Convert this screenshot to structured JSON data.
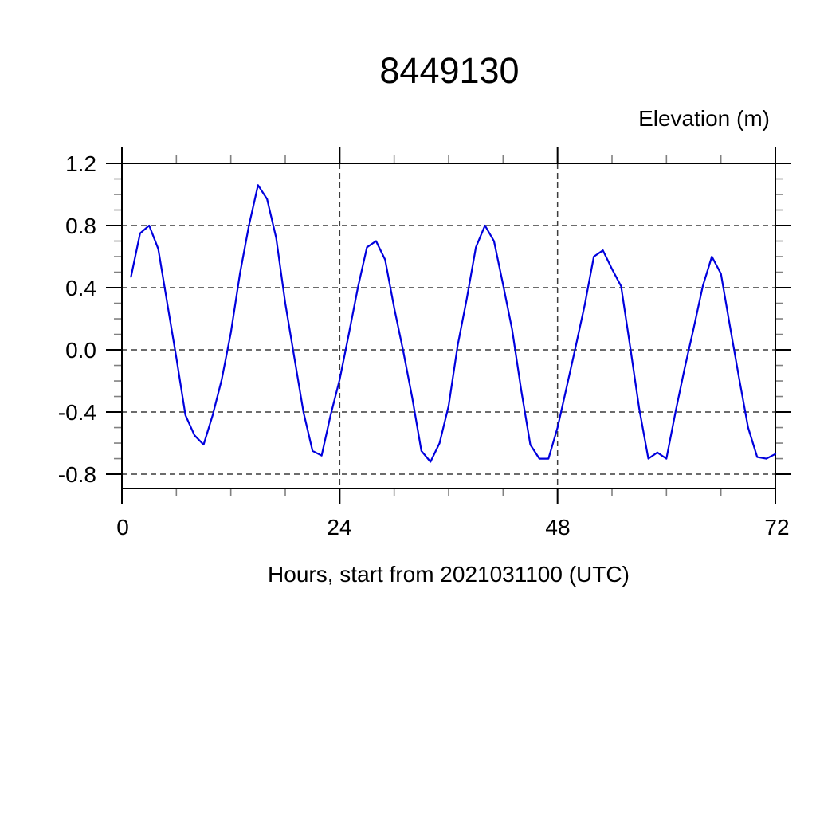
{
  "chart_data": {
    "type": "line",
    "title": "8449130",
    "ylabel": "Elevation (m)",
    "xlabel": "Hours, start from 2021031100 (UTC)",
    "xlim": [
      0,
      72
    ],
    "ylim": [
      -0.892,
      1.2
    ],
    "x_ticks_major": [
      0,
      24,
      48,
      72
    ],
    "x_tick_labels": [
      "0",
      "24",
      "48",
      "72"
    ],
    "x_minor_interval": 6,
    "y_ticks_major": [
      1.2,
      0.8,
      0.4,
      0.0,
      -0.4,
      -0.8
    ],
    "y_tick_labels": [
      "1.2",
      "0.8",
      "0.4",
      "0.0",
      "-0.4",
      "-0.8"
    ],
    "y_minor_interval": 0.1,
    "grid": "dashed, at major ticks; vertical gridlines at x=24,48",
    "legend": "none",
    "series": [
      {
        "name": "elevation",
        "color": "#0000dd",
        "x": [
          1,
          2,
          3,
          4,
          5,
          6,
          7,
          8,
          9,
          10,
          11,
          12,
          13,
          14,
          15,
          16,
          17,
          18,
          19,
          20,
          21,
          22,
          23,
          24,
          25,
          26,
          27,
          28,
          29,
          30,
          31,
          32,
          33,
          34,
          35,
          36,
          37,
          38,
          39,
          40,
          41,
          42,
          43,
          44,
          45,
          46,
          47,
          48,
          49,
          50,
          51,
          52,
          53,
          54,
          55,
          56,
          57,
          58,
          59,
          60,
          61,
          62,
          63,
          64,
          65,
          66,
          67,
          68,
          69,
          70,
          71,
          72
        ],
        "y": [
          0.47,
          0.75,
          0.8,
          0.65,
          0.3,
          -0.05,
          -0.42,
          -0.55,
          -0.61,
          -0.42,
          -0.19,
          0.11,
          0.49,
          0.8,
          1.06,
          0.97,
          0.72,
          0.3,
          -0.05,
          -0.4,
          -0.65,
          -0.68,
          -0.42,
          -0.19,
          0.1,
          0.4,
          0.66,
          0.7,
          0.58,
          0.27,
          -0.01,
          -0.31,
          -0.65,
          -0.72,
          -0.6,
          -0.36,
          0.03,
          0.33,
          0.66,
          0.8,
          0.7,
          0.42,
          0.13,
          -0.26,
          -0.61,
          -0.7,
          -0.7,
          -0.5,
          -0.24,
          0.02,
          0.29,
          0.6,
          0.64,
          0.52,
          0.41,
          0.02,
          -0.38,
          -0.7,
          -0.66,
          -0.7,
          -0.4,
          -0.12,
          0.14,
          0.41,
          0.6,
          0.49,
          0.15,
          -0.18,
          -0.5,
          -0.69,
          -0.7,
          -0.67
        ]
      }
    ]
  },
  "colors": {
    "background": "#ffffff",
    "frame": "#000000",
    "major_tick": "#000000",
    "minor_tick": "#808080",
    "gridline": "#3c3c3c",
    "line": "#0000dd",
    "text": "#000000"
  }
}
